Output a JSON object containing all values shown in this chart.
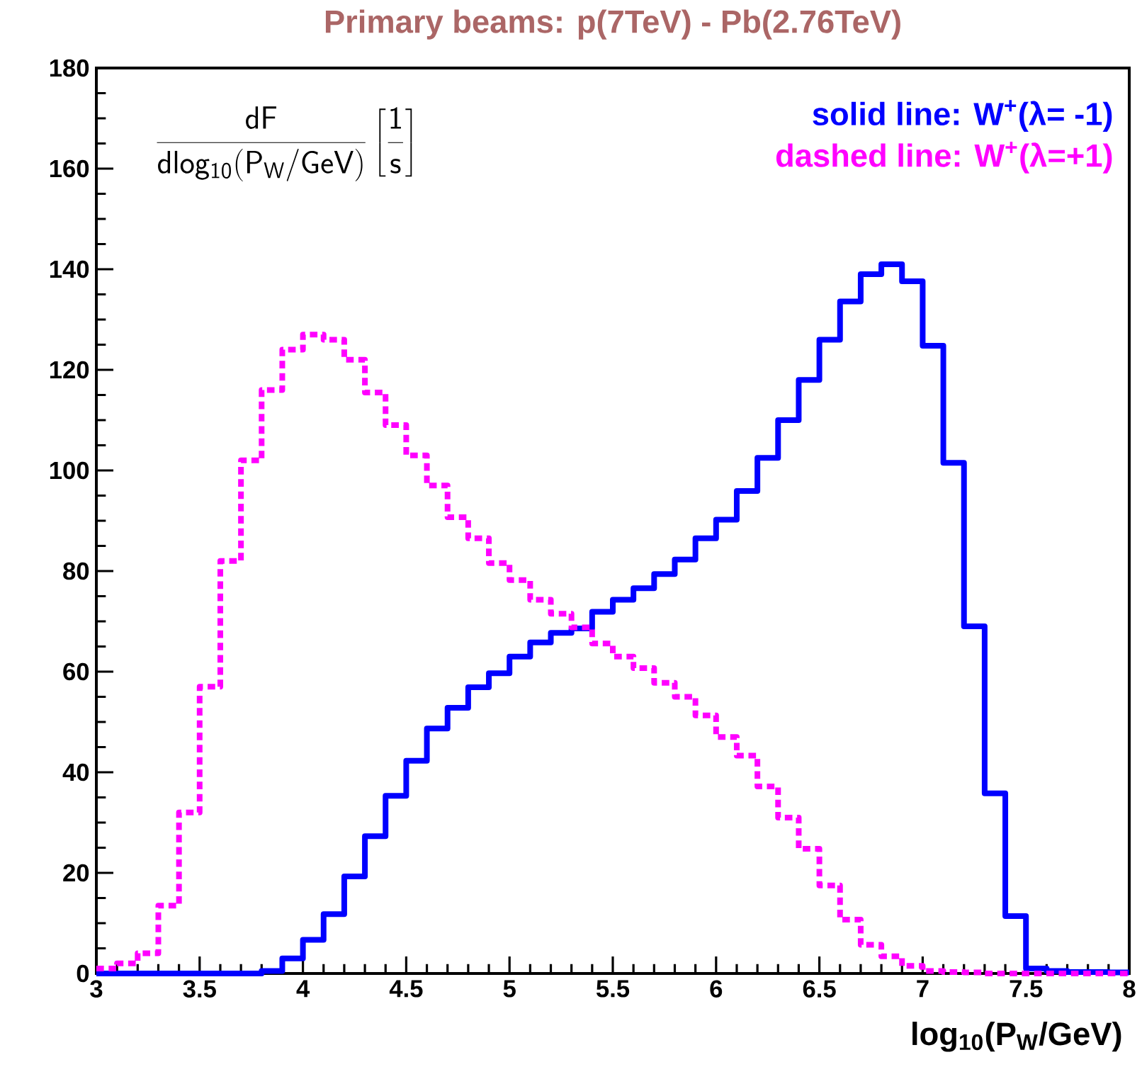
{
  "chart_data": {
    "type": "histogram",
    "title": "Primary beams: p(7TeV) - Pb(2.76TeV)",
    "xlabel": "log$_{10}$(P$_{W}$/GeV)",
    "ylabel": "\\frac{\\mathsf{dF}}{\\mathsf{dlog_{10}(P_{W}/GeV)}}\\left[\\frac{\\mathsf{1}}{\\mathsf{s}}\\right]",
    "bins": [
      3.0,
      3.1,
      3.2,
      3.3,
      3.4,
      3.5,
      3.6,
      3.7,
      3.8,
      3.9,
      4.0,
      4.1,
      4.2,
      4.3,
      4.4,
      4.5,
      4.6,
      4.7,
      4.8,
      4.9,
      5.0,
      5.1,
      5.2,
      5.3,
      5.4,
      5.5,
      5.6,
      5.7,
      5.8,
      5.9,
      6.0,
      6.1,
      6.2,
      6.3,
      6.4,
      6.5,
      6.6,
      6.7,
      6.8,
      6.9,
      7.0,
      7.1,
      7.2,
      7.3,
      7.4,
      7.5,
      7.6,
      7.7,
      7.8,
      7.9,
      8.0
    ],
    "series": [
      {
        "name": "solid line:  W$^{+}$(λ= -1)",
        "color": "#0000ff",
        "line_style": "solid",
        "values": [
          0,
          0,
          0,
          0,
          0,
          0,
          0,
          0,
          0.5,
          3,
          6.7,
          11.8,
          19.3,
          27.3,
          35.3,
          42.3,
          48.7,
          52.8,
          56.9,
          59.7,
          63,
          65.8,
          67.7,
          68.6,
          71.9,
          74.3,
          76.6,
          79.4,
          82.3,
          86.5,
          90.2,
          95.9,
          102.5,
          110,
          118,
          126,
          133.6,
          139,
          141,
          137.6,
          124.8,
          101.5,
          69,
          35.8,
          11.4,
          1,
          0.5,
          0.3,
          0.3,
          0.2
        ]
      },
      {
        "name": "dashed line: W$^{+}$(λ=+1)",
        "color": "#ff00ff",
        "line_style": "dashed",
        "values": [
          1,
          2,
          4,
          13.5,
          32,
          57,
          82,
          102,
          116,
          124,
          127,
          126,
          122,
          115.5,
          109,
          103,
          97,
          90.7,
          86.5,
          81.6,
          78.2,
          74.3,
          71.5,
          68.8,
          65.6,
          63,
          60.7,
          57.8,
          55,
          51.3,
          47,
          43.3,
          37.2,
          31,
          24.8,
          17.5,
          10.7,
          5.7,
          3.4,
          1.5,
          0.5,
          0.3,
          0.2,
          0,
          0,
          0,
          0,
          0,
          0,
          0
        ]
      }
    ],
    "xlim": [
      3,
      8
    ],
    "ylim": [
      0,
      180
    ],
    "xticks": [
      3,
      3.5,
      4,
      4.5,
      5,
      5.5,
      6,
      6.5,
      7,
      7.5,
      8
    ],
    "yticks": [
      0,
      20,
      40,
      60,
      80,
      100,
      120,
      140,
      160,
      180
    ],
    "legend": "top right",
    "grid": false
  }
}
